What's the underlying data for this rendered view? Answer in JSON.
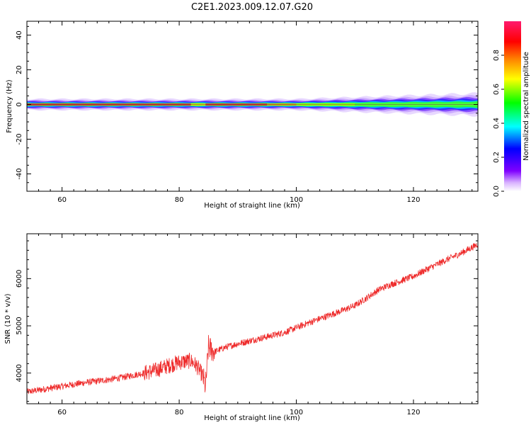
{
  "title": "C2E1.2023.009.12.07.G20",
  "chart_data": [
    {
      "type": "heatmap",
      "name": "spectrogram",
      "xlabel": "Height of straight line (km)",
      "ylabel": "Frequency (Hz)",
      "xlim": [
        54,
        131
      ],
      "ylim": [
        -50,
        48
      ],
      "x_ticks": [
        60,
        80,
        100,
        120
      ],
      "y_ticks": [
        -40,
        -20,
        0,
        20,
        40
      ],
      "description_values": {
        "band_center_hz": 0,
        "band_halfwidth_hz_low_height": 2,
        "band_halfwidth_hz_high_height": 4,
        "peak_amplitude_low_height": 0.9,
        "peak_amplitude_high_height": 0.45,
        "transition_height_km": 100
      },
      "colorbar": {
        "label": "Normalized spectral amplitude",
        "range": [
          0,
          1
        ],
        "ticks": [
          0.0,
          0.2,
          0.4,
          0.6,
          0.8
        ],
        "tick_labels": [
          "0.0",
          "0.2",
          "0.4",
          "0.6",
          "0.8"
        ],
        "colors": [
          "#ffffff",
          "#7f00ff",
          "#0000ff",
          "#00ffff",
          "#00ff00",
          "#ffff00",
          "#ff7f00",
          "#ff0000",
          "#ff1a6e"
        ]
      }
    },
    {
      "type": "line",
      "name": "snr",
      "xlabel": "Height of straight line (km)",
      "ylabel": "SNR (10 * v/v)",
      "xlim": [
        54,
        131
      ],
      "ylim": [
        3350,
        6950
      ],
      "x_ticks": [
        60,
        80,
        100,
        120
      ],
      "y_ticks": [
        4000,
        5000,
        6000
      ],
      "series_color": "#ee2a2a",
      "series": [
        {
          "name": "SNR",
          "x": [
            54,
            56,
            58,
            60,
            62,
            64,
            66,
            68,
            70,
            72,
            74,
            76,
            78,
            80,
            82,
            83,
            84,
            84.5,
            85,
            86,
            88,
            90,
            92,
            94,
            96,
            98,
            100,
            102,
            104,
            106,
            108,
            110,
            112,
            114,
            116,
            118,
            120,
            122,
            124,
            126,
            128,
            130,
            131
          ],
          "y": [
            3600,
            3640,
            3680,
            3720,
            3760,
            3800,
            3830,
            3860,
            3900,
            3950,
            4000,
            4060,
            4150,
            4230,
            4260,
            4150,
            3950,
            3700,
            4550,
            4450,
            4550,
            4620,
            4680,
            4740,
            4800,
            4860,
            4960,
            5060,
            5150,
            5240,
            5330,
            5430,
            5590,
            5760,
            5870,
            5960,
            6050,
            6180,
            6300,
            6420,
            6530,
            6660,
            6730
          ]
        }
      ]
    }
  ]
}
